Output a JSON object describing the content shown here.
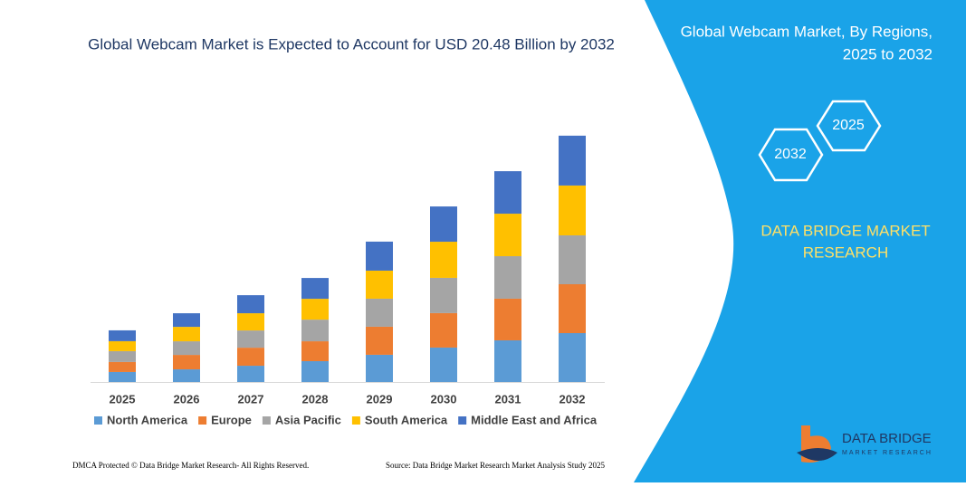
{
  "chart_data": {
    "type": "bar",
    "stacked": true,
    "title": "Global Webcam Market is Expected to Account for USD 20.48 Billion by 2032",
    "categories": [
      "2025",
      "2026",
      "2027",
      "2028",
      "2029",
      "2030",
      "2031",
      "2032"
    ],
    "series": [
      {
        "name": "North America",
        "color": "#5b9bd5",
        "values": [
          0.83,
          1.05,
          1.35,
          1.73,
          2.26,
          2.86,
          3.46,
          4.06
        ]
      },
      {
        "name": "Europe",
        "color": "#ed7d31",
        "values": [
          0.83,
          1.2,
          1.5,
          1.65,
          2.33,
          2.86,
          3.46,
          4.06
        ]
      },
      {
        "name": "Asia Pacific",
        "color": "#a5a5a5",
        "values": [
          0.9,
          1.13,
          1.43,
          1.8,
          2.33,
          2.93,
          3.53,
          4.06
        ]
      },
      {
        "name": "South America",
        "color": "#ffc000",
        "values": [
          0.83,
          1.2,
          1.43,
          1.73,
          2.33,
          3.0,
          3.53,
          4.14
        ]
      },
      {
        "name": "Middle East and Africa",
        "color": "#4472c4",
        "values": [
          0.9,
          1.13,
          1.5,
          1.73,
          2.41,
          2.93,
          3.53,
          4.14
        ]
      }
    ]
  },
  "panel": {
    "title_lines": [
      "Global Webcam Market, By Regions,",
      "2025 to 2032"
    ],
    "hexagons": [
      "2025",
      "2032"
    ],
    "brand_lines": [
      "DATA BRIDGE MARKET",
      "RESEARCH"
    ]
  },
  "logo": {
    "name": "DATA BRIDGE",
    "tagline": "MARKET RESEARCH"
  },
  "footer": {
    "left": "DMCA Protected © Data Bridge Market Research-  All Rights Reserved.",
    "right": "Source: Data Bridge Market Research  Market Analysis Study 2025"
  }
}
